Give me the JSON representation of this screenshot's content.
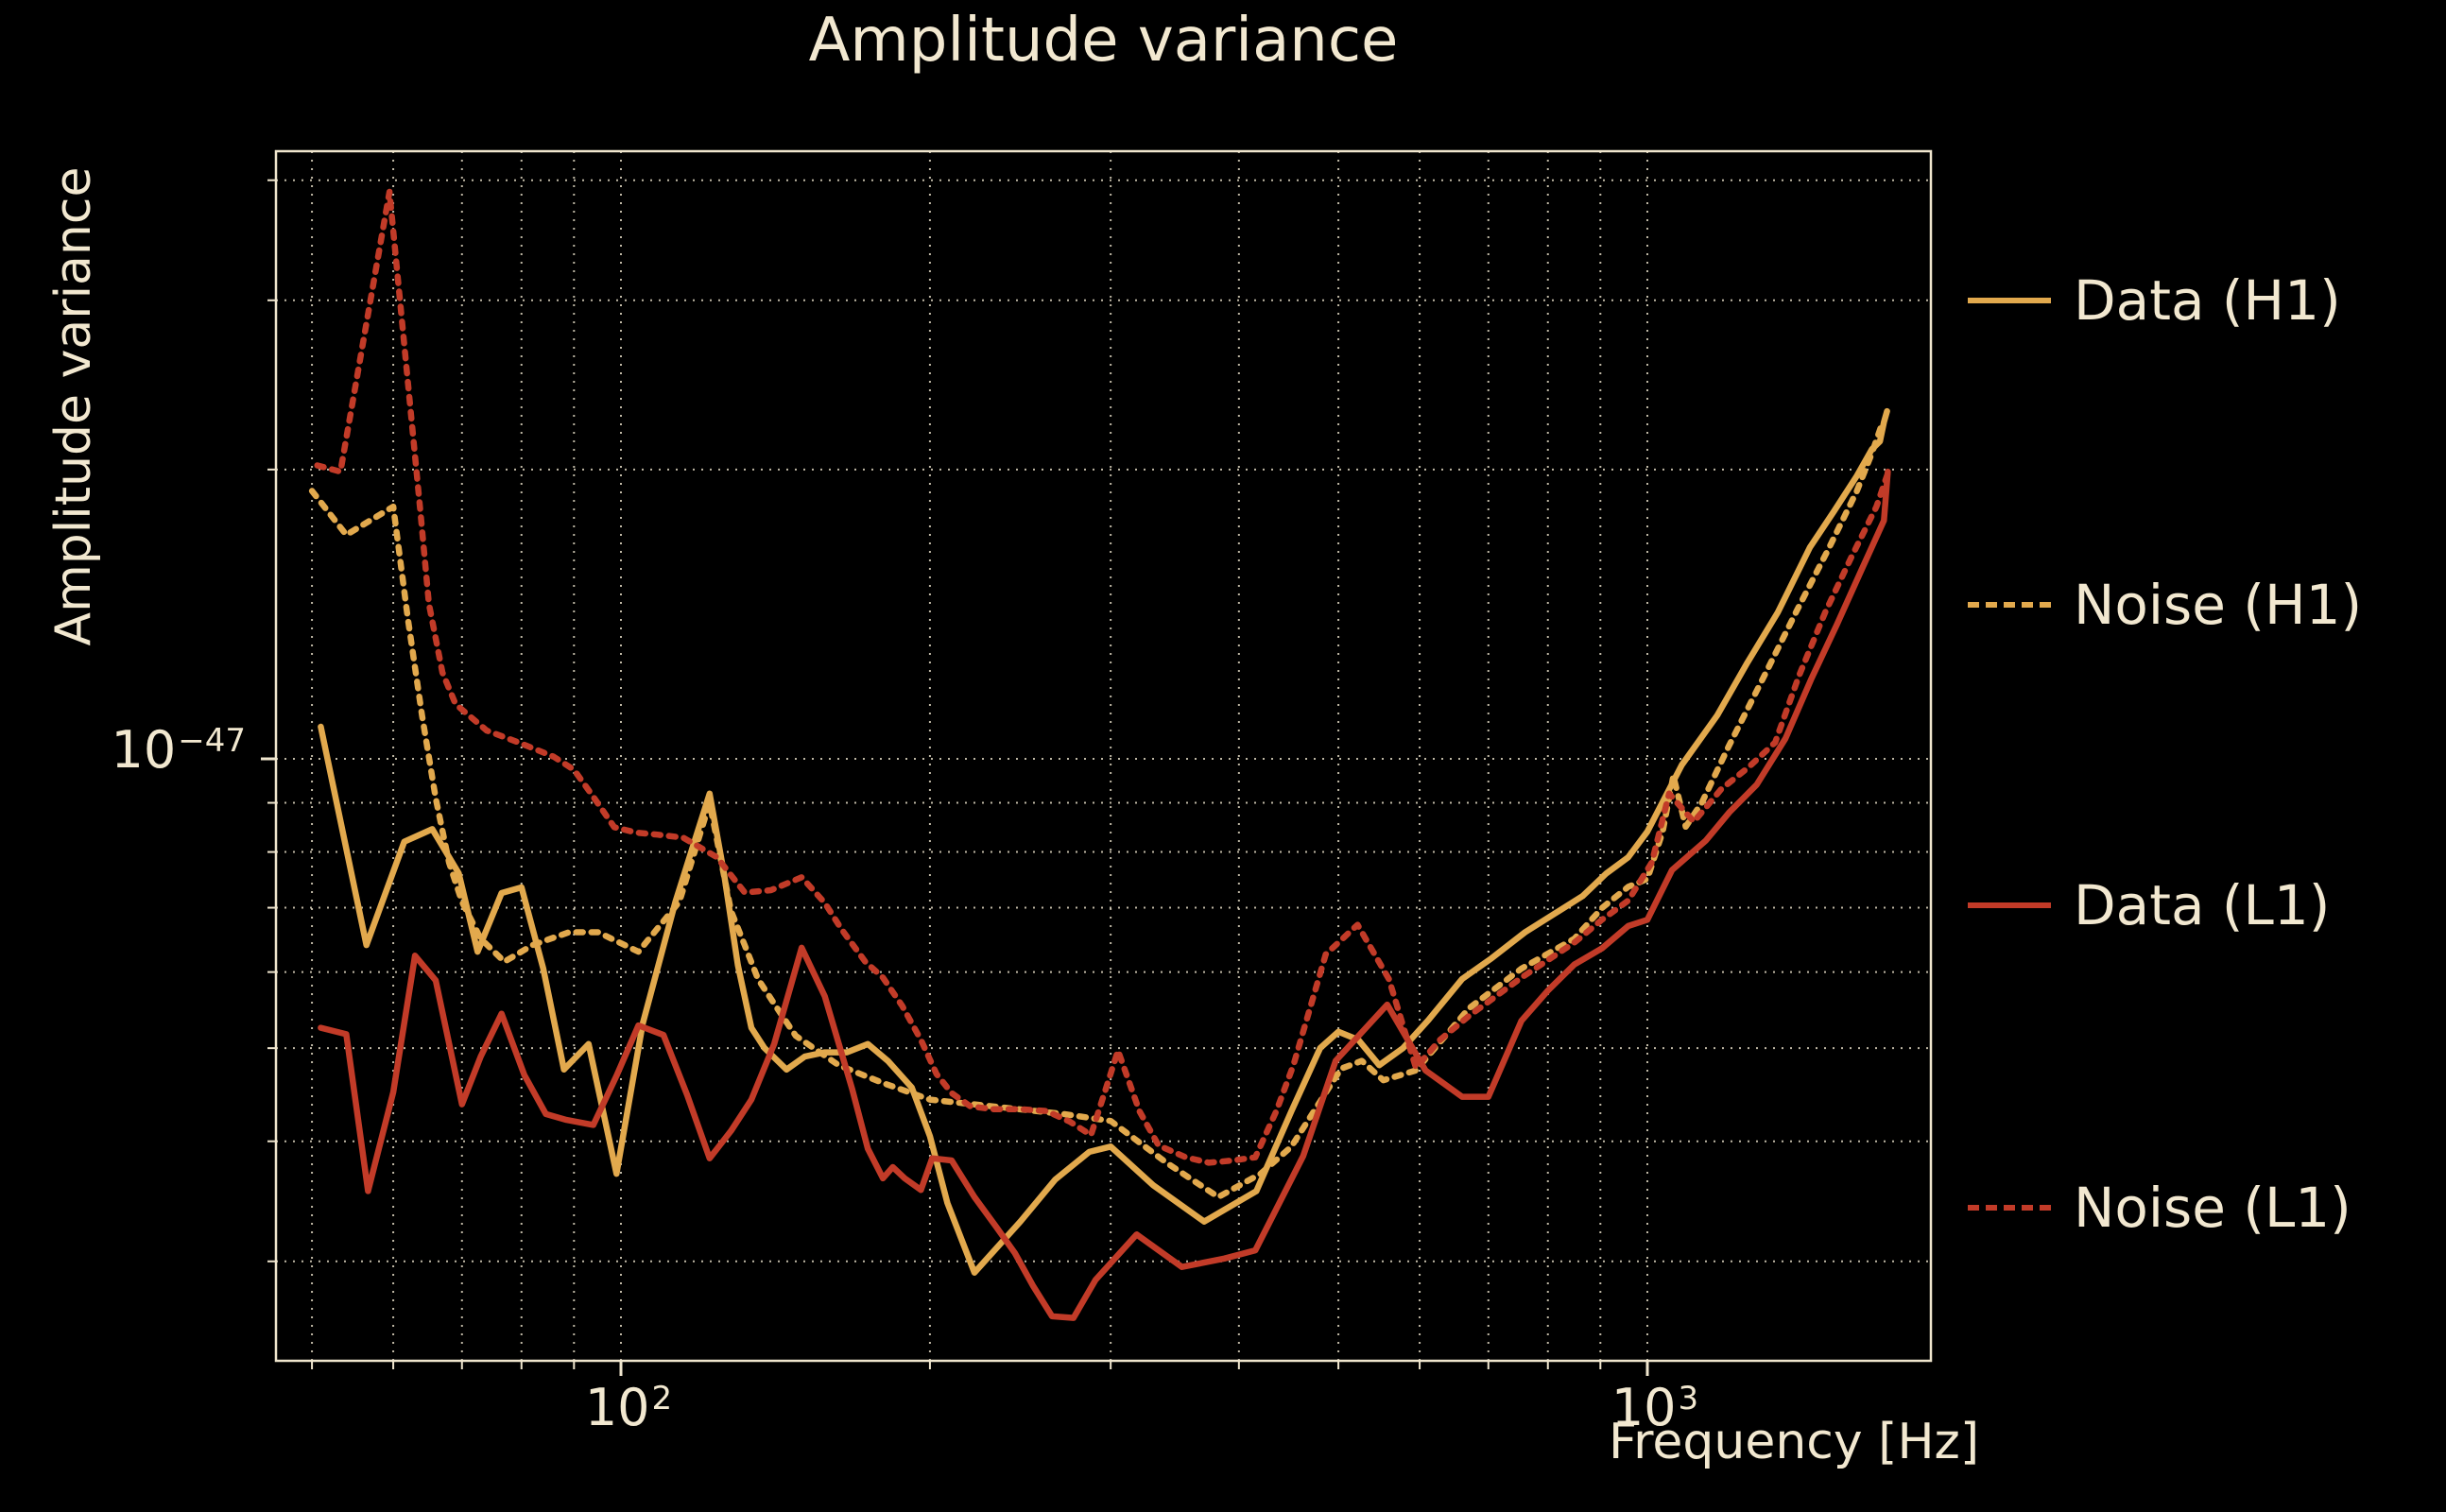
{
  "title": "Amplitude variance",
  "colors": {
    "background": "#000000",
    "text": "#F2E8D0",
    "grid": "#EFE6CF",
    "spine": "#F0E6CE",
    "h1_gold": "#E2A94D",
    "l1_red": "#C23B28"
  },
  "axes": {
    "x": {
      "label": "Frequency [Hz]",
      "scale": "log",
      "range_hz": [
        46.2,
        1890
      ],
      "tick_labels": [
        {
          "base": "10",
          "exp": "2",
          "value_hz": 100
        },
        {
          "base": "10",
          "exp": "3",
          "value_hz": 1000
        }
      ],
      "gridlines_hz": [
        50,
        60,
        70,
        80,
        90,
        100,
        200,
        300,
        400,
        500,
        600,
        700,
        800,
        900,
        1000
      ]
    },
    "y": {
      "label": "Amplitude variance",
      "scale": "log",
      "range": [
        2.36e-48,
        4.27e-47
      ],
      "tick_labels": [
        {
          "base": "10",
          "exp": "−47",
          "value": 1e-47
        }
      ],
      "gridlines_e48": [
        40,
        30,
        20,
        10,
        9,
        8,
        7,
        6,
        5,
        4,
        3
      ]
    }
  },
  "legend": {
    "entries": [
      {
        "label": "Data (H1)",
        "series": "data_h1",
        "style": "solid",
        "color": "#E2A94D"
      },
      {
        "label": "Noise (H1)",
        "series": "noise_h1",
        "style": "dotted",
        "color": "#E2A94D"
      },
      {
        "label": "Data (L1)",
        "series": "data_l1",
        "style": "solid",
        "color": "#C23B28"
      },
      {
        "label": "Noise (L1)",
        "series": "noise_l1",
        "style": "dotted",
        "color": "#C23B28"
      }
    ]
  },
  "chart_data": {
    "type": "line",
    "title": "Amplitude variance",
    "xlabel": "Frequency [Hz]",
    "ylabel": "Amplitude variance",
    "x_scale": "log",
    "y_scale": "log",
    "xlim_hz": [
      46.2,
      1890
    ],
    "ylim": [
      2.36e-48,
      4.27e-47
    ],
    "grid": "both, dotted",
    "legend_position": "right side, outside axes",
    "value_unit": "1e-48",
    "series": [
      {
        "name": "Data (H1)",
        "color": "#E2A94D",
        "style": "solid",
        "points": [
          [
            51,
            10.8
          ],
          [
            56.5,
            6.4
          ],
          [
            61.5,
            8.2
          ],
          [
            65.5,
            8.45
          ],
          [
            69.5,
            7.6
          ],
          [
            72.5,
            6.3
          ],
          [
            76.5,
            7.25
          ],
          [
            80,
            7.35
          ],
          [
            84,
            6.05
          ],
          [
            88,
            4.75
          ],
          [
            93,
            5.05
          ],
          [
            99,
            3.7
          ],
          [
            105,
            5.3
          ],
          [
            113,
            7.1
          ],
          [
            122,
            9.2
          ],
          [
            126,
            7.6
          ],
          [
            130,
            6.1
          ],
          [
            134,
            5.25
          ],
          [
            138,
            5.0
          ],
          [
            145,
            4.75
          ],
          [
            151,
            4.9
          ],
          [
            158,
            4.95
          ],
          [
            166,
            4.95
          ],
          [
            174,
            5.05
          ],
          [
            182,
            4.85
          ],
          [
            192,
            4.55
          ],
          [
            200,
            4.05
          ],
          [
            208,
            3.45
          ],
          [
            221,
            2.92
          ],
          [
            245,
            3.3
          ],
          [
            265,
            3.65
          ],
          [
            286,
            3.9
          ],
          [
            300,
            3.95
          ],
          [
            330,
            3.6
          ],
          [
            370,
            3.3
          ],
          [
            416,
            3.55
          ],
          [
            450,
            4.3
          ],
          [
            480,
            5.0
          ],
          [
            500,
            5.2
          ],
          [
            523,
            5.1
          ],
          [
            548,
            4.8
          ],
          [
            578,
            5.0
          ],
          [
            612,
            5.35
          ],
          [
            660,
            5.9
          ],
          [
            705,
            6.2
          ],
          [
            760,
            6.6
          ],
          [
            812,
            6.9
          ],
          [
            865,
            7.2
          ],
          [
            912,
            7.6
          ],
          [
            958,
            7.9
          ],
          [
            1000,
            8.4
          ],
          [
            1080,
            9.85
          ],
          [
            1170,
            11.1
          ],
          [
            1252,
            12.6
          ],
          [
            1340,
            14.2
          ],
          [
            1440,
            16.6
          ],
          [
            1520,
            18.1
          ],
          [
            1600,
            19.7
          ],
          [
            1655,
            21.0
          ],
          [
            1685,
            21.4
          ],
          [
            1700,
            22.4
          ],
          [
            1712,
            23.0
          ]
        ]
      },
      {
        "name": "Noise (H1)",
        "color": "#E2A94D",
        "style": "dotted",
        "points": [
          [
            50,
            19.0
          ],
          [
            54,
            17.1
          ],
          [
            60,
            18.3
          ],
          [
            62,
            14.0
          ],
          [
            64,
            11.1
          ],
          [
            66,
            9.1
          ],
          [
            68,
            7.8
          ],
          [
            70,
            7.1
          ],
          [
            73,
            6.5
          ],
          [
            77,
            6.15
          ],
          [
            82,
            6.4
          ],
          [
            89,
            6.6
          ],
          [
            95,
            6.6
          ],
          [
            104,
            6.3
          ],
          [
            114,
            7.1
          ],
          [
            122,
            9.0
          ],
          [
            128,
            6.95
          ],
          [
            132,
            6.4
          ],
          [
            136,
            5.9
          ],
          [
            142,
            5.5
          ],
          [
            148,
            5.15
          ],
          [
            163,
            4.8
          ],
          [
            180,
            4.6
          ],
          [
            200,
            4.42
          ],
          [
            230,
            4.35
          ],
          [
            270,
            4.27
          ],
          [
            300,
            4.2
          ],
          [
            340,
            3.8
          ],
          [
            382,
            3.5
          ],
          [
            420,
            3.7
          ],
          [
            450,
            3.95
          ],
          [
            480,
            4.4
          ],
          [
            503,
            4.76
          ],
          [
            527,
            4.85
          ],
          [
            553,
            4.63
          ],
          [
            595,
            4.74
          ],
          [
            670,
            5.5
          ],
          [
            754,
            6.05
          ],
          [
            849,
            6.5
          ],
          [
            904,
            7.0
          ],
          [
            958,
            7.36
          ],
          [
            1000,
            7.5
          ],
          [
            1035,
            8.4
          ],
          [
            1060,
            9.6
          ],
          [
            1090,
            8.5
          ],
          [
            1130,
            9.0
          ],
          [
            1200,
            10.3
          ],
          [
            1300,
            12.2
          ],
          [
            1400,
            14.3
          ],
          [
            1500,
            16.5
          ],
          [
            1600,
            19.0
          ],
          [
            1655,
            20.8
          ],
          [
            1690,
            22.2
          ]
        ]
      },
      {
        "name": "Data (L1)",
        "color": "#C23B28",
        "style": "solid",
        "points": [
          [
            51,
            5.25
          ],
          [
            54,
            5.17
          ],
          [
            56.7,
            3.55
          ],
          [
            60,
            4.5
          ],
          [
            63,
            6.24
          ],
          [
            66,
            5.88
          ],
          [
            70,
            4.37
          ],
          [
            73,
            4.9
          ],
          [
            76.5,
            5.43
          ],
          [
            80.5,
            4.69
          ],
          [
            84.5,
            4.27
          ],
          [
            88.5,
            4.21
          ],
          [
            94,
            4.16
          ],
          [
            99,
            4.68
          ],
          [
            104,
            5.28
          ],
          [
            110,
            5.16
          ],
          [
            116,
            4.47
          ],
          [
            122,
            3.84
          ],
          [
            128,
            4.1
          ],
          [
            134,
            4.42
          ],
          [
            141,
            5.05
          ],
          [
            150,
            6.36
          ],
          [
            158,
            5.66
          ],
          [
            168,
            4.53
          ],
          [
            174,
            3.93
          ],
          [
            180,
            3.66
          ],
          [
            184,
            3.76
          ],
          [
            189,
            3.66
          ],
          [
            196,
            3.56
          ],
          [
            201,
            3.84
          ],
          [
            210,
            3.82
          ],
          [
            221,
            3.5
          ],
          [
            232,
            3.26
          ],
          [
            242,
            3.06
          ],
          [
            252,
            2.83
          ],
          [
            263,
            2.63
          ],
          [
            276,
            2.62
          ],
          [
            290,
            2.87
          ],
          [
            318,
            3.2
          ],
          [
            352,
            2.96
          ],
          [
            387,
            3.02
          ],
          [
            415,
            3.08
          ],
          [
            462,
            3.86
          ],
          [
            497,
            4.85
          ],
          [
            558,
            5.55
          ],
          [
            608,
            4.74
          ],
          [
            660,
            4.45
          ],
          [
            700,
            4.45
          ],
          [
            754,
            5.34
          ],
          [
            800,
            5.74
          ],
          [
            849,
            6.11
          ],
          [
            903,
            6.35
          ],
          [
            958,
            6.7
          ],
          [
            1000,
            6.8
          ],
          [
            1057,
            7.66
          ],
          [
            1140,
            8.22
          ],
          [
            1202,
            8.8
          ],
          [
            1278,
            9.4
          ],
          [
            1363,
            10.5
          ],
          [
            1444,
            12.1
          ],
          [
            1530,
            13.8
          ],
          [
            1620,
            15.8
          ],
          [
            1700,
            17.7
          ],
          [
            1715,
            19.9
          ]
        ]
      },
      {
        "name": "Noise (L1)",
        "color": "#C23B28",
        "style": "dotted",
        "points": [
          [
            50.6,
            20.2
          ],
          [
            53.3,
            19.9
          ],
          [
            59.5,
            38.9
          ],
          [
            63.8,
            18.0
          ],
          [
            65,
            14.5
          ],
          [
            67,
            12.3
          ],
          [
            69,
            11.4
          ],
          [
            74,
            10.7
          ],
          [
            79.5,
            10.4
          ],
          [
            86,
            10.05
          ],
          [
            90,
            9.74
          ],
          [
            94,
            9.13
          ],
          [
            98.5,
            8.49
          ],
          [
            103.5,
            8.38
          ],
          [
            108.5,
            8.34
          ],
          [
            115,
            8.28
          ],
          [
            124,
            7.9
          ],
          [
            132,
            7.26
          ],
          [
            140,
            7.3
          ],
          [
            150,
            7.53
          ],
          [
            158,
            7.08
          ],
          [
            164,
            6.65
          ],
          [
            173,
            6.15
          ],
          [
            180,
            5.92
          ],
          [
            188,
            5.53
          ],
          [
            196,
            5.1
          ],
          [
            203,
            4.7
          ],
          [
            210,
            4.49
          ],
          [
            219,
            4.35
          ],
          [
            230,
            4.32
          ],
          [
            245,
            4.32
          ],
          [
            260,
            4.3
          ],
          [
            274,
            4.19
          ],
          [
            287,
            4.06
          ],
          [
            298,
            4.6
          ],
          [
            305,
            4.97
          ],
          [
            320,
            4.3
          ],
          [
            334,
            3.96
          ],
          [
            355,
            3.85
          ],
          [
            374,
            3.8
          ],
          [
            395,
            3.82
          ],
          [
            415,
            3.85
          ],
          [
            435,
            4.3
          ],
          [
            452,
            4.8
          ],
          [
            486,
            6.26
          ],
          [
            522,
            6.72
          ],
          [
            560,
            5.9
          ],
          [
            595,
            4.77
          ],
          [
            628,
            5.1
          ],
          [
            670,
            5.4
          ],
          [
            754,
            5.92
          ],
          [
            849,
            6.44
          ],
          [
            903,
            6.8
          ],
          [
            958,
            7.12
          ],
          [
            1010,
            7.8
          ],
          [
            1050,
            9.2
          ],
          [
            1110,
            8.6
          ],
          [
            1180,
            9.3
          ],
          [
            1255,
            9.8
          ],
          [
            1332,
            10.4
          ],
          [
            1405,
            12.2
          ],
          [
            1490,
            14.2
          ],
          [
            1580,
            16.2
          ],
          [
            1672,
            18.3
          ],
          [
            1717,
            19.9
          ]
        ]
      }
    ]
  }
}
